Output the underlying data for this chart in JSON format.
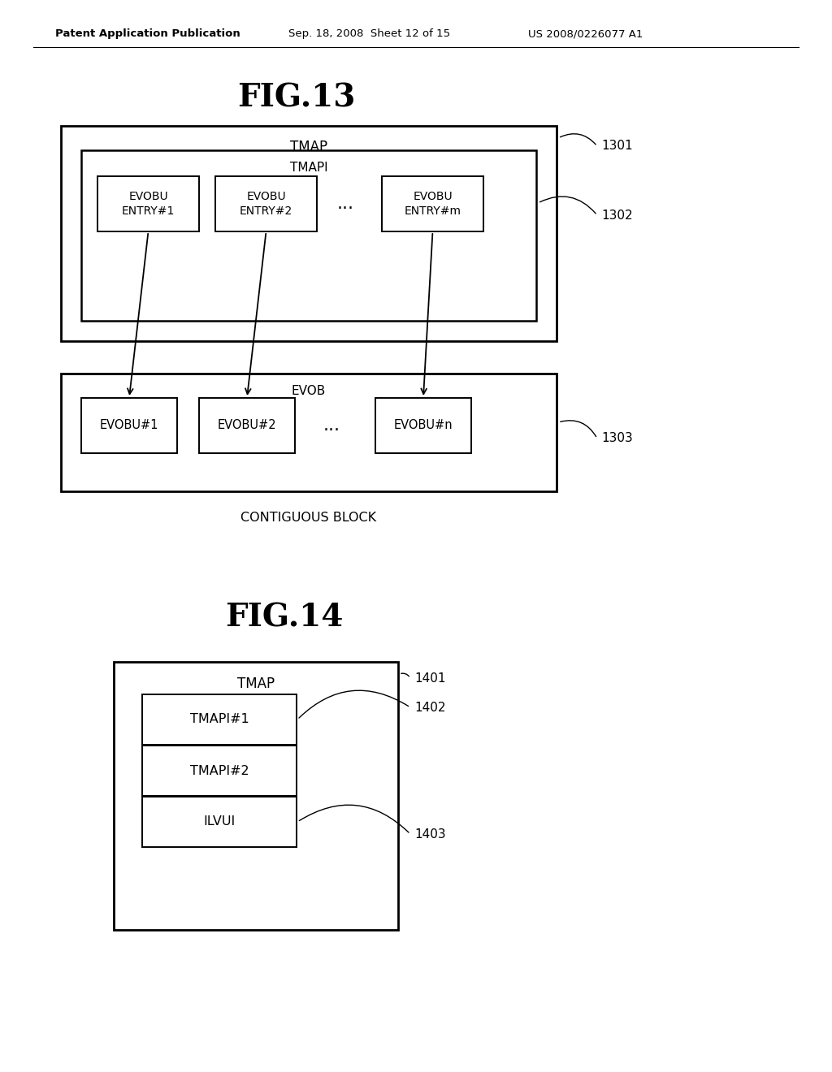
{
  "bg_color": "#ffffff",
  "header_left": "Patent Application Publication",
  "header_mid": "Sep. 18, 2008  Sheet 12 of 15",
  "header_right": "US 2008/0226077 A1",
  "fig13_title": "FIG.13",
  "fig14_title": "FIG.14",
  "fig13_label1": "1301",
  "fig13_label2": "1302",
  "fig13_label3": "1303",
  "fig14_label1": "1401",
  "fig14_label2": "1402",
  "fig14_label3": "1403",
  "tmap_label": "TMAP",
  "tmapi_label": "TMAPI",
  "evob_label": "EVOB",
  "contiguous_block_label": "CONTIGUOUS BLOCK",
  "entry1": "EVOBU\nENTRY#1",
  "entry2": "EVOBU\nENTRY#2",
  "entrym": "EVOBU\nENTRY#m",
  "evobu1": "EVOBU#1",
  "evobu2": "EVOBU#2",
  "evobun": "EVOBU#n",
  "tmap14": "TMAP",
  "tmapi1": "TMAPI#1",
  "tmapi2": "TMAPI#2",
  "ilvui": "ILVUI"
}
